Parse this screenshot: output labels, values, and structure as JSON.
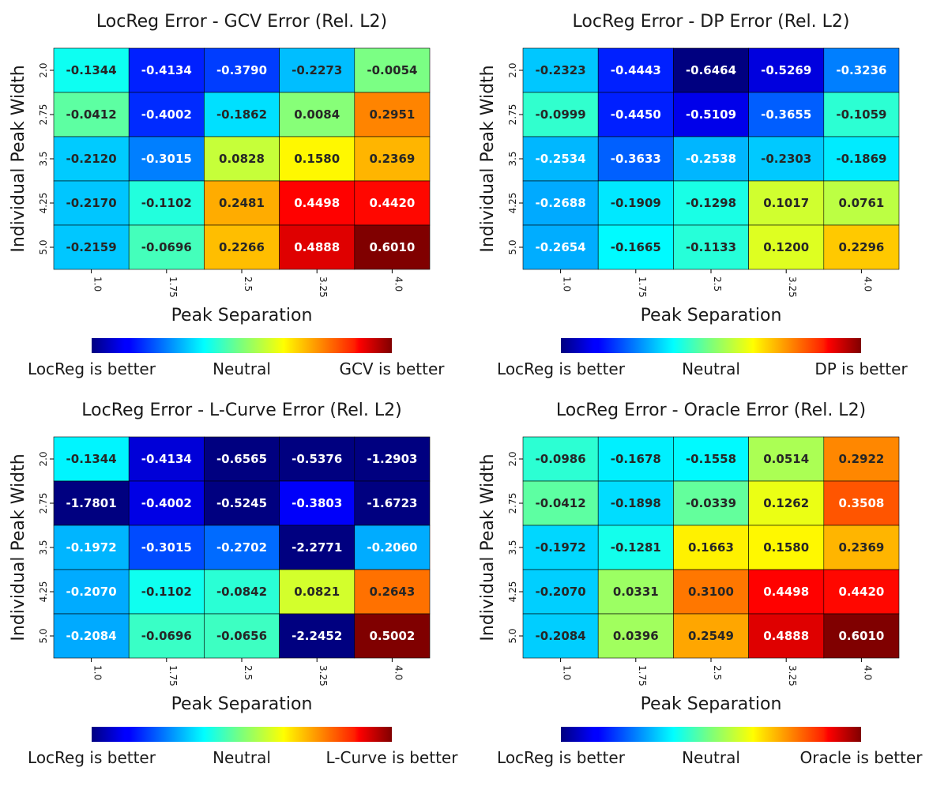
{
  "chart_data": [
    {
      "type": "heatmap",
      "title": "LocReg Error - GCV Error (Rel. L2)",
      "xlabel": "Peak Separation",
      "ylabel": "Individual Peak Width",
      "x": [
        "1.0",
        "1.75",
        "2.5",
        "3.25",
        "4.0"
      ],
      "y": [
        "2.0",
        "2.75",
        "3.5",
        "4.25",
        "5.0"
      ],
      "values": [
        [
          -0.1344,
          -0.4134,
          -0.379,
          -0.2273,
          -0.0054
        ],
        [
          -0.0412,
          -0.4002,
          -0.1862,
          0.0084,
          0.2951
        ],
        [
          -0.212,
          -0.3015,
          0.0828,
          0.158,
          0.2369
        ],
        [
          -0.217,
          -0.1102,
          0.2481,
          0.4498,
          0.442
        ],
        [
          -0.2159,
          -0.0696,
          0.2266,
          0.4888,
          0.601
        ]
      ],
      "value_labels": [
        [
          "-0.1344",
          "-0.4134",
          "-0.3790",
          "-0.2273",
          "-0.0054"
        ],
        [
          "-0.0412",
          "-0.4002",
          "-0.1862",
          "0.0084",
          "0.2951"
        ],
        [
          "-0.2120",
          "-0.3015",
          "0.0828",
          "0.1580",
          "0.2369"
        ],
        [
          "-0.2170",
          "-0.1102",
          "0.2481",
          "0.4498",
          "0.4420"
        ],
        [
          "-0.2159",
          "-0.0696",
          "0.2266",
          "0.4888",
          "0.6010"
        ]
      ],
      "vrange": [
        -0.601,
        0.601
      ],
      "colormap": "jet",
      "colorbar_labels": [
        "LocReg is better",
        "Neutral",
        "GCV is better"
      ]
    },
    {
      "type": "heatmap",
      "title": "LocReg Error - DP Error (Rel. L2)",
      "xlabel": "Peak Separation",
      "ylabel": "Individual Peak Width",
      "x": [
        "1.0",
        "1.75",
        "2.5",
        "3.25",
        "4.0"
      ],
      "y": [
        "2.0",
        "2.75",
        "3.5",
        "4.25",
        "5.0"
      ],
      "values": [
        [
          -0.2323,
          -0.4443,
          -0.6464,
          -0.5269,
          -0.3236
        ],
        [
          -0.0999,
          -0.445,
          -0.5109,
          -0.3655,
          -0.1059
        ],
        [
          -0.2534,
          -0.3633,
          -0.2538,
          -0.2303,
          -0.1869
        ],
        [
          -0.2688,
          -0.1909,
          -0.1298,
          0.1017,
          0.0761
        ],
        [
          -0.2654,
          -0.1665,
          -0.1133,
          0.12,
          0.2296
        ]
      ],
      "value_labels": [
        [
          "-0.2323",
          "-0.4443",
          "-0.6464",
          "-0.5269",
          "-0.3236"
        ],
        [
          "-0.0999",
          "-0.4450",
          "-0.5109",
          "-0.3655",
          "-0.1059"
        ],
        [
          "-0.2534",
          "-0.3633",
          "-0.2538",
          "-0.2303",
          "-0.1869"
        ],
        [
          "-0.2688",
          "-0.1909",
          "-0.1298",
          "0.1017",
          "0.0761"
        ],
        [
          "-0.2654",
          "-0.1665",
          "-0.1133",
          "0.1200",
          "0.2296"
        ]
      ],
      "vrange": [
        -0.6464,
        0.6464
      ],
      "colormap": "jet",
      "colorbar_labels": [
        "LocReg is better",
        "Neutral",
        "DP is better"
      ]
    },
    {
      "type": "heatmap",
      "title": "LocReg Error - L-Curve Error (Rel. L2)",
      "xlabel": "Peak Separation",
      "ylabel": "Individual Peak Width",
      "x": [
        "1.0",
        "1.75",
        "2.5",
        "3.25",
        "4.0"
      ],
      "y": [
        "2.0",
        "2.75",
        "3.5",
        "4.25",
        "5.0"
      ],
      "values": [
        [
          -0.1344,
          -0.4134,
          -0.6565,
          -0.5376,
          -1.2903
        ],
        [
          -1.7801,
          -0.4002,
          -0.5245,
          -0.3803,
          -1.6723
        ],
        [
          -0.1972,
          -0.3015,
          -0.2702,
          -2.2771,
          -0.206
        ],
        [
          -0.207,
          -0.1102,
          -0.0842,
          0.0821,
          0.2643
        ],
        [
          -0.2084,
          -0.0696,
          -0.0656,
          -2.2452,
          0.5002
        ]
      ],
      "value_labels": [
        [
          "-0.1344",
          "-0.4134",
          "-0.6565",
          "-0.5376",
          "-1.2903"
        ],
        [
          "-1.7801",
          "-0.4002",
          "-0.5245",
          "-0.3803",
          "-1.6723"
        ],
        [
          "-0.1972",
          "-0.3015",
          "-0.2702",
          "-2.2771",
          "-0.2060"
        ],
        [
          "-0.2070",
          "-0.1102",
          "-0.0842",
          "0.0821",
          "0.2643"
        ],
        [
          "-0.2084",
          "-0.0696",
          "-0.0656",
          "-2.2452",
          "0.5002"
        ]
      ],
      "vrange": [
        -0.5,
        0.5
      ],
      "colormap": "jet",
      "colorbar_labels": [
        "LocReg is better",
        "Neutral",
        "L-Curve is better"
      ]
    },
    {
      "type": "heatmap",
      "title": "LocReg Error - Oracle Error (Rel. L2)",
      "xlabel": "Peak Separation",
      "ylabel": "Individual Peak Width",
      "x": [
        "1.0",
        "1.75",
        "2.5",
        "3.25",
        "4.0"
      ],
      "y": [
        "2.0",
        "2.75",
        "3.5",
        "4.25",
        "5.0"
      ],
      "values": [
        [
          -0.0986,
          -0.1678,
          -0.1558,
          0.0514,
          0.2922
        ],
        [
          -0.0412,
          -0.1898,
          -0.0339,
          0.1262,
          0.3508
        ],
        [
          -0.1972,
          -0.1281,
          0.1663,
          0.158,
          0.2369
        ],
        [
          -0.207,
          0.0331,
          0.31,
          0.4498,
          0.442
        ],
        [
          -0.2084,
          0.0396,
          0.2549,
          0.4888,
          0.601
        ]
      ],
      "value_labels": [
        [
          "-0.0986",
          "-0.1678",
          "-0.1558",
          "0.0514",
          "0.2922"
        ],
        [
          "-0.0412",
          "-0.1898",
          "-0.0339",
          "0.1262",
          "0.3508"
        ],
        [
          "-0.1972",
          "-0.1281",
          "0.1663",
          "0.1580",
          "0.2369"
        ],
        [
          "-0.2070",
          "0.0331",
          "0.3100",
          "0.4498",
          "0.4420"
        ],
        [
          "-0.2084",
          "0.0396",
          "0.2549",
          "0.4888",
          "0.6010"
        ]
      ],
      "vrange": [
        -0.601,
        0.601
      ],
      "colormap": "jet",
      "colorbar_labels": [
        "LocReg is better",
        "Neutral",
        "Oracle is better"
      ]
    }
  ]
}
